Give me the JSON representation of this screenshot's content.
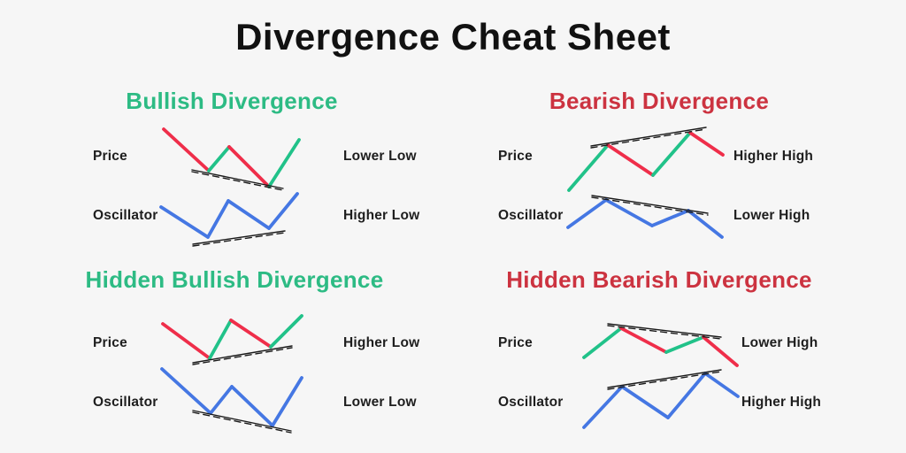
{
  "page": {
    "title": "Divergence Cheat Sheet"
  },
  "colors": {
    "background": "#f6f6f6",
    "title": "#111111",
    "label": "#1e1e1e",
    "bullish": "#2dbb84",
    "bearish": "#cc3340",
    "red": "#ef2e4a",
    "green": "#21c289",
    "blue": "#4577e3",
    "trend": "#1a1a1a"
  },
  "sections": [
    {
      "id": "bullish-divergence",
      "title": "Bullish Divergence",
      "tone": "bullish",
      "rows": [
        {
          "label": "Price",
          "annotation": "Lower Low",
          "chart": {
            "segments": [
              {
                "color": "red",
                "pts": [
                  [
                    185,
                    146
                  ],
                  [
                    236,
                    193
                  ]
                ]
              },
              {
                "color": "green",
                "pts": [
                  [
                    236,
                    193
                  ],
                  [
                    259,
                    166
                  ]
                ]
              },
              {
                "color": "red",
                "pts": [
                  [
                    259,
                    166
                  ],
                  [
                    304,
                    211
                  ]
                ]
              },
              {
                "color": "green",
                "pts": [
                  [
                    304,
                    211
                  ],
                  [
                    338,
                    158
                  ]
                ]
              }
            ],
            "trendline": [
              [
                217,
                192
              ],
              [
                320,
                213
              ]
            ]
          }
        },
        {
          "label": "Oscillator",
          "annotation": "Higher Low",
          "chart": {
            "segments": [
              {
                "color": "blue",
                "pts": [
                  [
                    182,
                    234
                  ],
                  [
                    235,
                    268
                  ]
                ]
              },
              {
                "color": "blue",
                "pts": [
                  [
                    235,
                    268
                  ],
                  [
                    258,
                    227
                  ]
                ]
              },
              {
                "color": "blue",
                "pts": [
                  [
                    258,
                    227
                  ],
                  [
                    304,
                    258
                  ]
                ]
              },
              {
                "color": "blue",
                "pts": [
                  [
                    304,
                    258
                  ],
                  [
                    336,
                    219
                  ]
                ]
              }
            ],
            "trendline": [
              [
                218,
                276
              ],
              [
                322,
                261
              ]
            ]
          }
        }
      ]
    },
    {
      "id": "bearish-divergence",
      "title": "Bearish Divergence",
      "tone": "bearish",
      "rows": [
        {
          "label": "Price",
          "annotation": "Higher High",
          "chart": {
            "segments": [
              {
                "color": "green",
                "pts": [
                  [
                    643,
                    215
                  ],
                  [
                    687,
                    164
                  ]
                ]
              },
              {
                "color": "red",
                "pts": [
                  [
                    687,
                    164
                  ],
                  [
                    738,
                    198
                  ]
                ]
              },
              {
                "color": "green",
                "pts": [
                  [
                    738,
                    198
                  ],
                  [
                    780,
                    150
                  ]
                ]
              },
              {
                "color": "red",
                "pts": [
                  [
                    780,
                    150
                  ],
                  [
                    817,
                    175
                  ]
                ]
              }
            ],
            "trendline": [
              [
                668,
                165
              ],
              [
                798,
                144
              ]
            ]
          }
        },
        {
          "label": "Oscillator",
          "annotation": "Lower High",
          "chart": {
            "segments": [
              {
                "color": "blue",
                "pts": [
                  [
                    642,
                    257
                  ],
                  [
                    685,
                    226
                  ]
                ]
              },
              {
                "color": "blue",
                "pts": [
                  [
                    685,
                    226
                  ],
                  [
                    737,
                    255
                  ]
                ]
              },
              {
                "color": "blue",
                "pts": [
                  [
                    737,
                    255
                  ],
                  [
                    778,
                    238
                  ]
                ]
              },
              {
                "color": "blue",
                "pts": [
                  [
                    778,
                    238
                  ],
                  [
                    816,
                    268
                  ]
                ]
              }
            ],
            "trendline": [
              [
                669,
                221
              ],
              [
                800,
                241
              ]
            ]
          }
        }
      ]
    },
    {
      "id": "hidden-bullish-divergence",
      "title": "Hidden Bullish Divergence",
      "tone": "bullish",
      "rows": [
        {
          "label": "Price",
          "annotation": "Higher Low",
          "chart": {
            "segments": [
              {
                "color": "red",
                "pts": [
                  [
                    184,
                    366
                  ],
                  [
                    237,
                    405
                  ]
                ]
              },
              {
                "color": "green",
                "pts": [
                  [
                    237,
                    405
                  ],
                  [
                    261,
                    362
                  ]
                ]
              },
              {
                "color": "red",
                "pts": [
                  [
                    261,
                    362
                  ],
                  [
                    306,
                    392
                  ]
                ]
              },
              {
                "color": "green",
                "pts": [
                  [
                    306,
                    392
                  ],
                  [
                    341,
                    357
                  ]
                ]
              }
            ],
            "trendline": [
              [
                218,
                410
              ],
              [
                330,
                391
              ]
            ]
          }
        },
        {
          "label": "Oscillator",
          "annotation": "Lower Low",
          "chart": {
            "segments": [
              {
                "color": "blue",
                "pts": [
                  [
                    183,
                    417
                  ],
                  [
                    238,
                    467
                  ]
                ]
              },
              {
                "color": "blue",
                "pts": [
                  [
                    238,
                    467
                  ],
                  [
                    262,
                    437
                  ]
                ]
              },
              {
                "color": "blue",
                "pts": [
                  [
                    262,
                    437
                  ],
                  [
                    308,
                    481
                  ]
                ]
              },
              {
                "color": "blue",
                "pts": [
                  [
                    308,
                    481
                  ],
                  [
                    341,
                    427
                  ]
                ]
              }
            ],
            "trendline": [
              [
                218,
                464
              ],
              [
                329,
                487
              ]
            ]
          }
        }
      ]
    },
    {
      "id": "hidden-bearish-divergence",
      "title": "Hidden Bearish Divergence",
      "tone": "bearish",
      "rows": [
        {
          "label": "Price",
          "annotation": "Lower High",
          "chart": {
            "segments": [
              {
                "color": "green",
                "pts": [
                  [
                    660,
                    404
                  ],
                  [
                    702,
                    371
                  ]
                ]
              },
              {
                "color": "red",
                "pts": [
                  [
                    702,
                    371
                  ],
                  [
                    753,
                    398
                  ]
                ]
              },
              {
                "color": "green",
                "pts": [
                  [
                    753,
                    398
                  ],
                  [
                    795,
                    381
                  ]
                ]
              },
              {
                "color": "red",
                "pts": [
                  [
                    795,
                    381
                  ],
                  [
                    833,
                    413
                  ]
                ]
              }
            ],
            "trendline": [
              [
                687,
                366
              ],
              [
                815,
                381
              ]
            ]
          }
        },
        {
          "label": "Oscillator",
          "annotation": "Higher High",
          "chart": {
            "segments": [
              {
                "color": "blue",
                "pts": [
                  [
                    660,
                    483
                  ],
                  [
                    703,
                    437
                  ]
                ]
              },
              {
                "color": "blue",
                "pts": [
                  [
                    703,
                    437
                  ],
                  [
                    755,
                    472
                  ]
                ]
              },
              {
                "color": "blue",
                "pts": [
                  [
                    755,
                    472
                  ],
                  [
                    797,
                    422
                  ]
                ]
              },
              {
                "color": "blue",
                "pts": [
                  [
                    797,
                    422
                  ],
                  [
                    834,
                    448
                  ]
                ]
              }
            ],
            "trendline": [
              [
                687,
                438
              ],
              [
                815,
                418
              ]
            ]
          }
        }
      ]
    }
  ]
}
